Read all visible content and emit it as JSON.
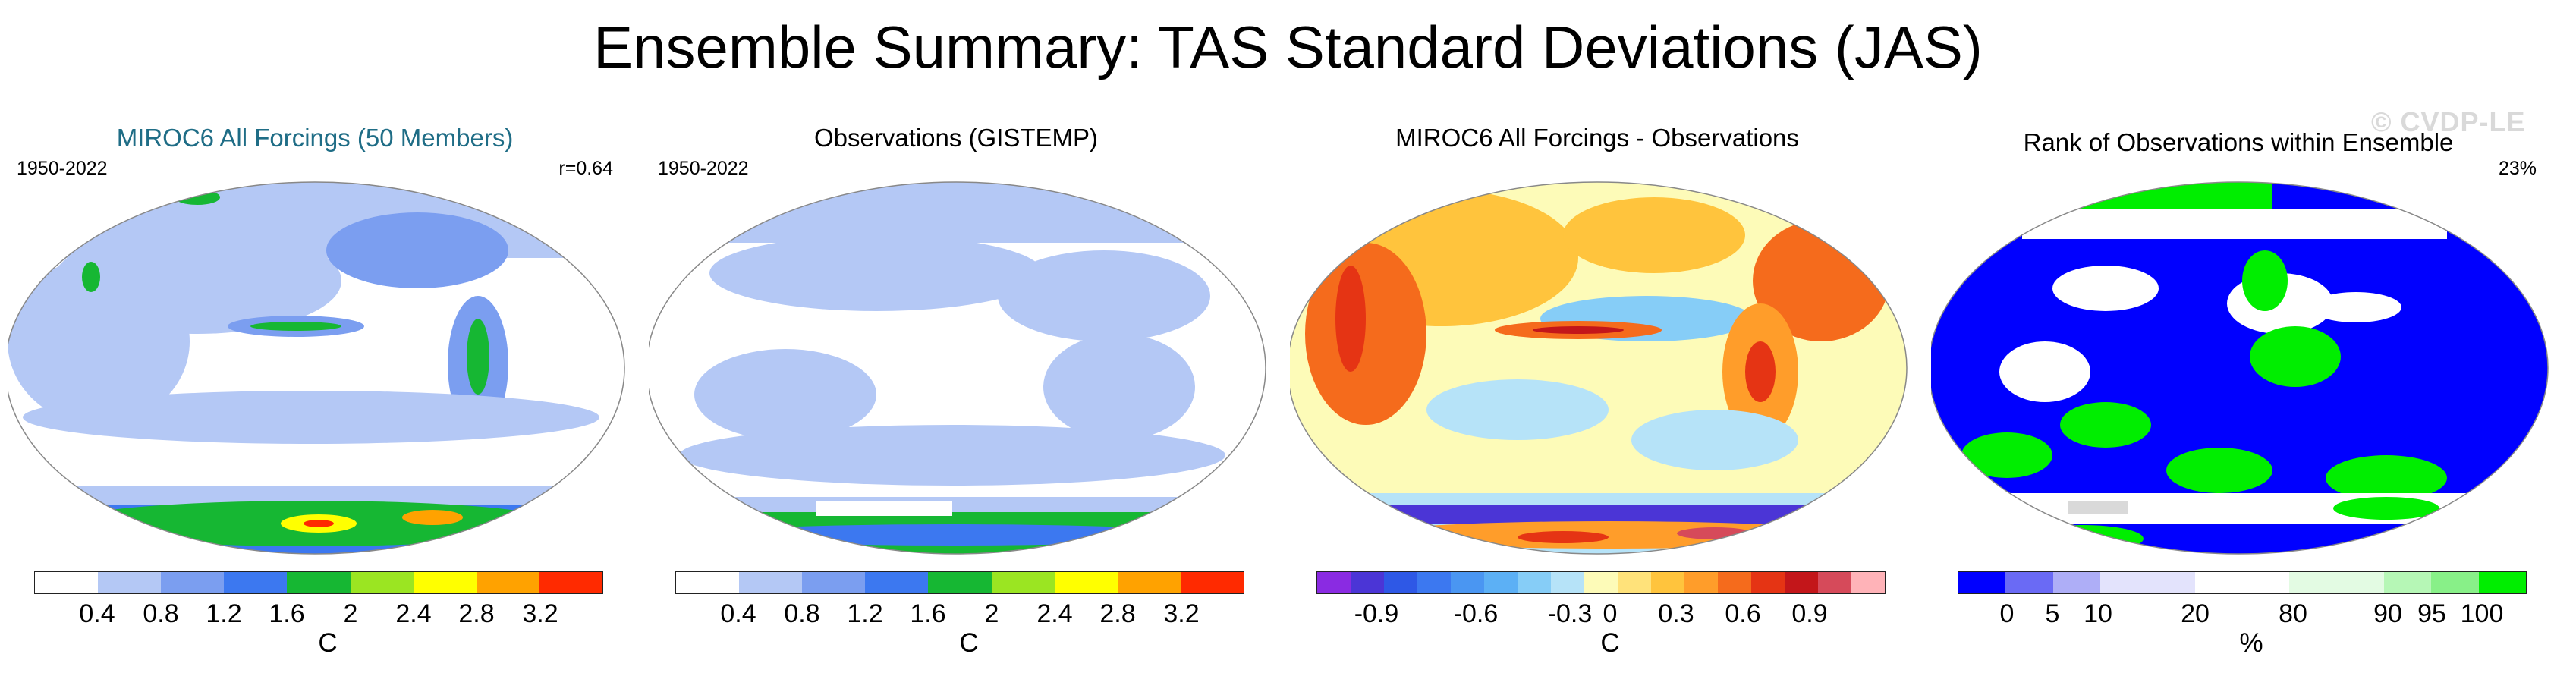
{
  "title": "Ensemble Summary: TAS Standard Deviations (JAS)",
  "watermark": "© CVDP-LE",
  "panels": [
    {
      "title": "MIROC6 All Forcings (50 Members)",
      "title_color": "#1f6d86",
      "left_label": "1950-2022",
      "right_label": "r=0.64",
      "unit": "C",
      "colorbar": [
        "#ffffff",
        "#b4c8f5",
        "#7b9ef0",
        "#3c78f0",
        "#16b733",
        "#9be522",
        "#ffff00",
        "#ffa200",
        "#ff2a00"
      ],
      "ticks": [
        "0.4",
        "0.8",
        "1.2",
        "1.6",
        "2",
        "2.4",
        "2.8",
        "3.2"
      ],
      "map_icon": "global-tas-stddev-map"
    },
    {
      "title": "Observations (GISTEMP)",
      "title_color": "#000000",
      "left_label": "1950-2022",
      "right_label": "",
      "unit": "C",
      "colorbar": [
        "#ffffff",
        "#b4c8f5",
        "#7b9ef0",
        "#3c78f0",
        "#16b733",
        "#9be522",
        "#ffff00",
        "#ffa200",
        "#ff2a00"
      ],
      "ticks": [
        "0.4",
        "0.8",
        "1.2",
        "1.6",
        "2",
        "2.4",
        "2.8",
        "3.2"
      ],
      "map_icon": "global-tas-stddev-map"
    },
    {
      "title": "MIROC6 All Forcings - Observations",
      "title_color": "#000000",
      "left_label": "",
      "right_label": "",
      "unit": "C",
      "colorbar": [
        "#8a2be2",
        "#4b35d6",
        "#2e58e6",
        "#3c78f0",
        "#4a96f2",
        "#5cb0f5",
        "#86cdf7",
        "#b6e3f8",
        "#fdfbb8",
        "#ffe27a",
        "#ffc43d",
        "#ff9d2a",
        "#f56b1c",
        "#e53414",
        "#c3161a",
        "#d64a5a",
        "#ffb3b8"
      ],
      "ticks": [
        "-0.9",
        "-0.6",
        "-0.3",
        "0",
        "0.3",
        "0.6",
        "0.9"
      ],
      "map_icon": "global-tas-difference-map"
    },
    {
      "title": "Rank of Observations within Ensemble",
      "title_color": "#000000",
      "left_label": "",
      "right_label": "23%",
      "unit": "%",
      "colorbar": [
        "#0000ff",
        "#6a6af5",
        "#aeaef7",
        "#e3e3fc",
        "#ffffff",
        "#e3fbe3",
        "#b6f7b6",
        "#88f088",
        "#00ee00"
      ],
      "ticks": [
        "0",
        "5",
        "10",
        "20",
        "80",
        "90",
        "95",
        "100"
      ],
      "map_icon": "global-rank-map"
    }
  ]
}
